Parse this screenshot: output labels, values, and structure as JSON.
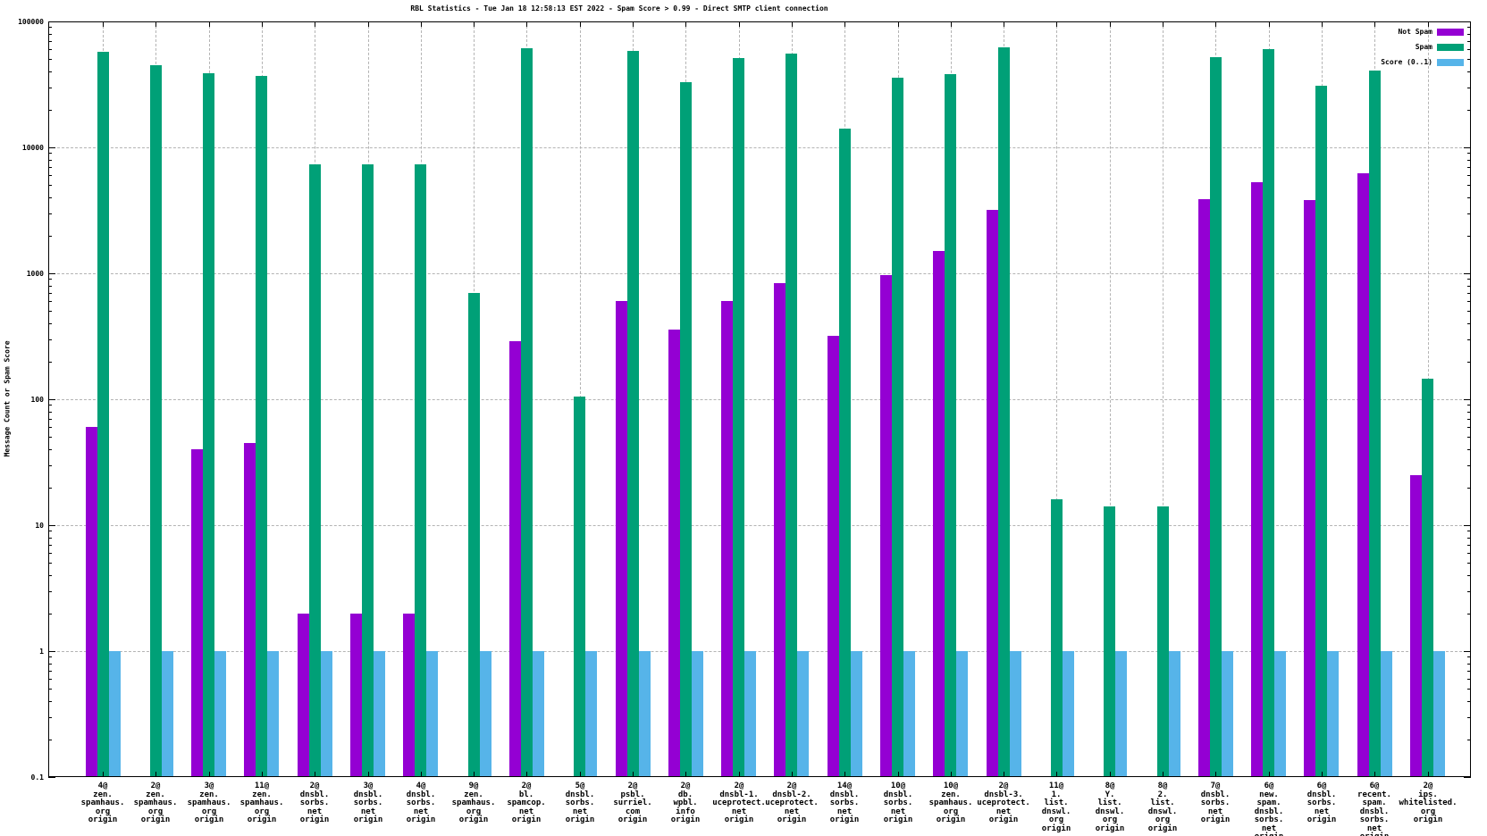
{
  "chart_data": {
    "type": "bar",
    "title": "RBL Statistics - Tue Jan 18 12:58:13 EST 2022 - Spam Score > 0.99 - Direct SMTP client connection",
    "ylabel": "Message Count or Spam Score",
    "xlabel": "",
    "yscale": "log",
    "ylim": [
      0.1,
      100000
    ],
    "grid": "dashed horizontal and vertical",
    "legend_position": "top-right",
    "ytick_labels": [
      "100000",
      "10000",
      "1000",
      "100",
      "10",
      "1",
      "0.1"
    ],
    "yticks": [
      100000,
      10000,
      1000,
      100,
      10,
      1,
      0.1
    ],
    "categories": [
      {
        "lines": [
          "4@",
          "zen.",
          "spamhaus.",
          "org",
          "origin"
        ]
      },
      {
        "lines": [
          "2@",
          "zen.",
          "spamhaus.",
          "org",
          "origin"
        ]
      },
      {
        "lines": [
          "3@",
          "zen.",
          "spamhaus.",
          "org",
          "origin"
        ]
      },
      {
        "lines": [
          "11@",
          "zen.",
          "spamhaus.",
          "org",
          "origin"
        ]
      },
      {
        "lines": [
          "2@",
          "dnsbl.",
          "sorbs.",
          "net",
          "origin"
        ]
      },
      {
        "lines": [
          "3@",
          "dnsbl.",
          "sorbs.",
          "net",
          "origin"
        ]
      },
      {
        "lines": [
          "4@",
          "dnsbl.",
          "sorbs.",
          "net",
          "origin"
        ]
      },
      {
        "lines": [
          "9@",
          "zen.",
          "spamhaus.",
          "org",
          "origin"
        ]
      },
      {
        "lines": [
          "2@",
          "bl.",
          "spamcop.",
          "net",
          "origin"
        ]
      },
      {
        "lines": [
          "5@",
          "dnsbl.",
          "sorbs.",
          "net",
          "origin"
        ]
      },
      {
        "lines": [
          "2@",
          "psbl.",
          "surriel.",
          "com",
          "origin"
        ]
      },
      {
        "lines": [
          "2@",
          "db.",
          "wpbl.",
          "info",
          "origin"
        ]
      },
      {
        "lines": [
          "2@",
          "dnsbl-1.",
          "uceprotect.",
          "net",
          "origin"
        ]
      },
      {
        "lines": [
          "2@",
          "dnsbl-2.",
          "uceprotect.",
          "net",
          "origin"
        ]
      },
      {
        "lines": [
          "14@",
          "dnsbl.",
          "sorbs.",
          "net",
          "origin"
        ]
      },
      {
        "lines": [
          "10@",
          "dnsbl.",
          "sorbs.",
          "net",
          "origin"
        ]
      },
      {
        "lines": [
          "10@",
          "zen.",
          "spamhaus.",
          "org",
          "origin"
        ]
      },
      {
        "lines": [
          "2@",
          "dnsbl-3.",
          "uceprotect.",
          "net",
          "origin"
        ]
      },
      {
        "lines": [
          "11@",
          "1.",
          "list.",
          "dnswl.",
          "org",
          "origin"
        ]
      },
      {
        "lines": [
          "8@",
          "Y.",
          "list.",
          "dnswl.",
          "org",
          "origin"
        ]
      },
      {
        "lines": [
          "8@",
          "2.",
          "list.",
          "dnswl.",
          "org",
          "origin"
        ]
      },
      {
        "lines": [
          "7@",
          "dnsbl.",
          "sorbs.",
          "net",
          "origin"
        ]
      },
      {
        "lines": [
          "6@",
          "new.",
          "spam.",
          "dnsbl.",
          "sorbs.",
          "net",
          "origin"
        ]
      },
      {
        "lines": [
          "6@",
          "dnsbl.",
          "sorbs.",
          "net",
          "origin"
        ]
      },
      {
        "lines": [
          "6@",
          "recent.",
          "spam.",
          "dnsbl.",
          "sorbs.",
          "net",
          "origin"
        ]
      },
      {
        "lines": [
          "2@",
          "ips.",
          "whitelisted.",
          "org",
          "origin"
        ]
      }
    ],
    "series": [
      {
        "name": "Not Spam",
        "color": "#9400d3",
        "values": [
          60,
          null,
          40,
          45,
          2,
          2,
          2,
          null,
          290,
          null,
          600,
          360,
          600,
          830,
          320,
          960,
          1500,
          3200,
          null,
          null,
          null,
          3900,
          5300,
          3800,
          6200,
          25
        ]
      },
      {
        "name": "Spam",
        "color": "#00a077",
        "values": [
          57000,
          45000,
          39000,
          37000,
          7300,
          7300,
          7300,
          700,
          61000,
          105,
          58000,
          33000,
          51000,
          56000,
          14200,
          36000,
          38000,
          62000,
          16,
          14,
          14,
          52000,
          60000,
          31000,
          41000,
          145
        ]
      },
      {
        "name": "Score (0..1)",
        "color": "#56b4e9",
        "values": [
          1,
          1,
          1,
          1,
          1,
          1,
          1,
          1,
          1,
          1,
          1,
          1,
          1,
          1,
          1,
          1,
          1,
          1,
          1,
          1,
          1,
          1,
          1,
          1,
          1,
          1
        ]
      }
    ]
  }
}
